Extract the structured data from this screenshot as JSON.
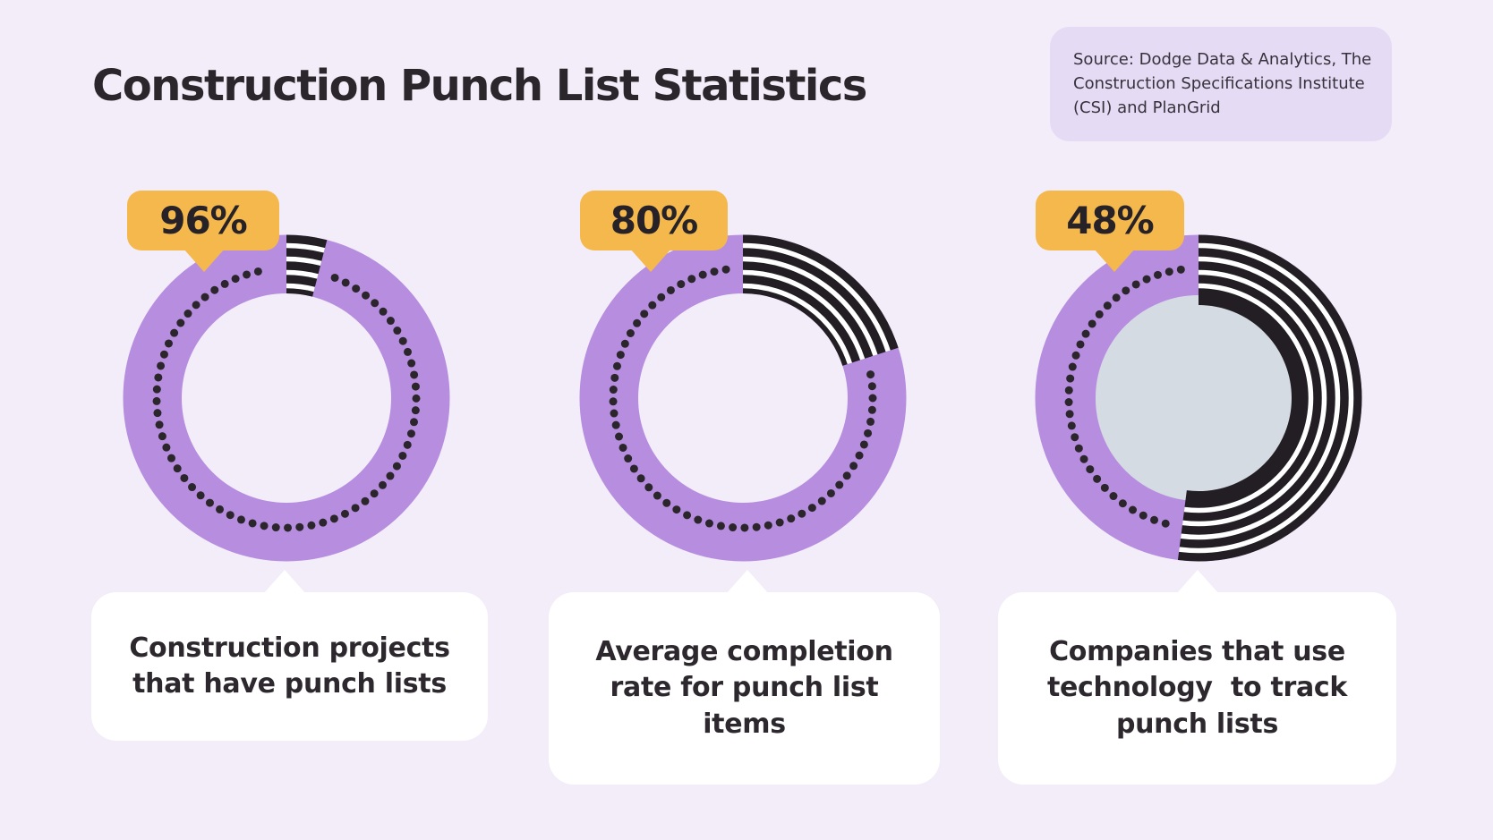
{
  "page": {
    "background_color": "#F2EDF9"
  },
  "header": {
    "title": "Construction Punch List Statistics",
    "text_color": "#2A262C"
  },
  "source_box": {
    "text": "Source: Dodge Data & Analytics, The Construction Specifications Institute (CSI) and PlanGrid",
    "lines": [
      "Source: Dodge Data & Analytics, The",
      "Construction Specifications Institute",
      "(CSI) and PlanGrid"
    ],
    "background_color": "#E6DBF5"
  },
  "chart_data": {
    "type": "pie",
    "subtype": "donut-percentage-trio",
    "title": "Construction Punch List Statistics",
    "legend_position": "none",
    "grid": false,
    "filled_color": "#B78EDF",
    "remainder_color": "#221E24",
    "remainder_stripe_color": "#FFFFFF",
    "dot_color": "#2B262B",
    "badge_color": "#F5B84D",
    "charts": [
      {
        "badge_label": "96%",
        "percent_filled": 96,
        "percent_remainder": 4,
        "caption": "Construction projects that have punch lists",
        "caption_lines": [
          "Construction projects",
          "that have punch lists"
        ],
        "has_center_disc": false
      },
      {
        "badge_label": "80%",
        "percent_filled": 80,
        "percent_remainder": 20,
        "caption": "Average completion rate for punch list items",
        "caption_lines": [
          "Average completion",
          "rate for punch list",
          "items"
        ],
        "has_center_disc": false
      },
      {
        "badge_label": "48%",
        "percent_filled": 48,
        "percent_remainder": 52,
        "caption": "Companies that use technology  to track punch lists",
        "caption_lines": [
          "Companies that use",
          "technology  to track",
          "punch lists"
        ],
        "has_center_disc": true,
        "center_disc_color": "#D4DBE3"
      }
    ]
  }
}
